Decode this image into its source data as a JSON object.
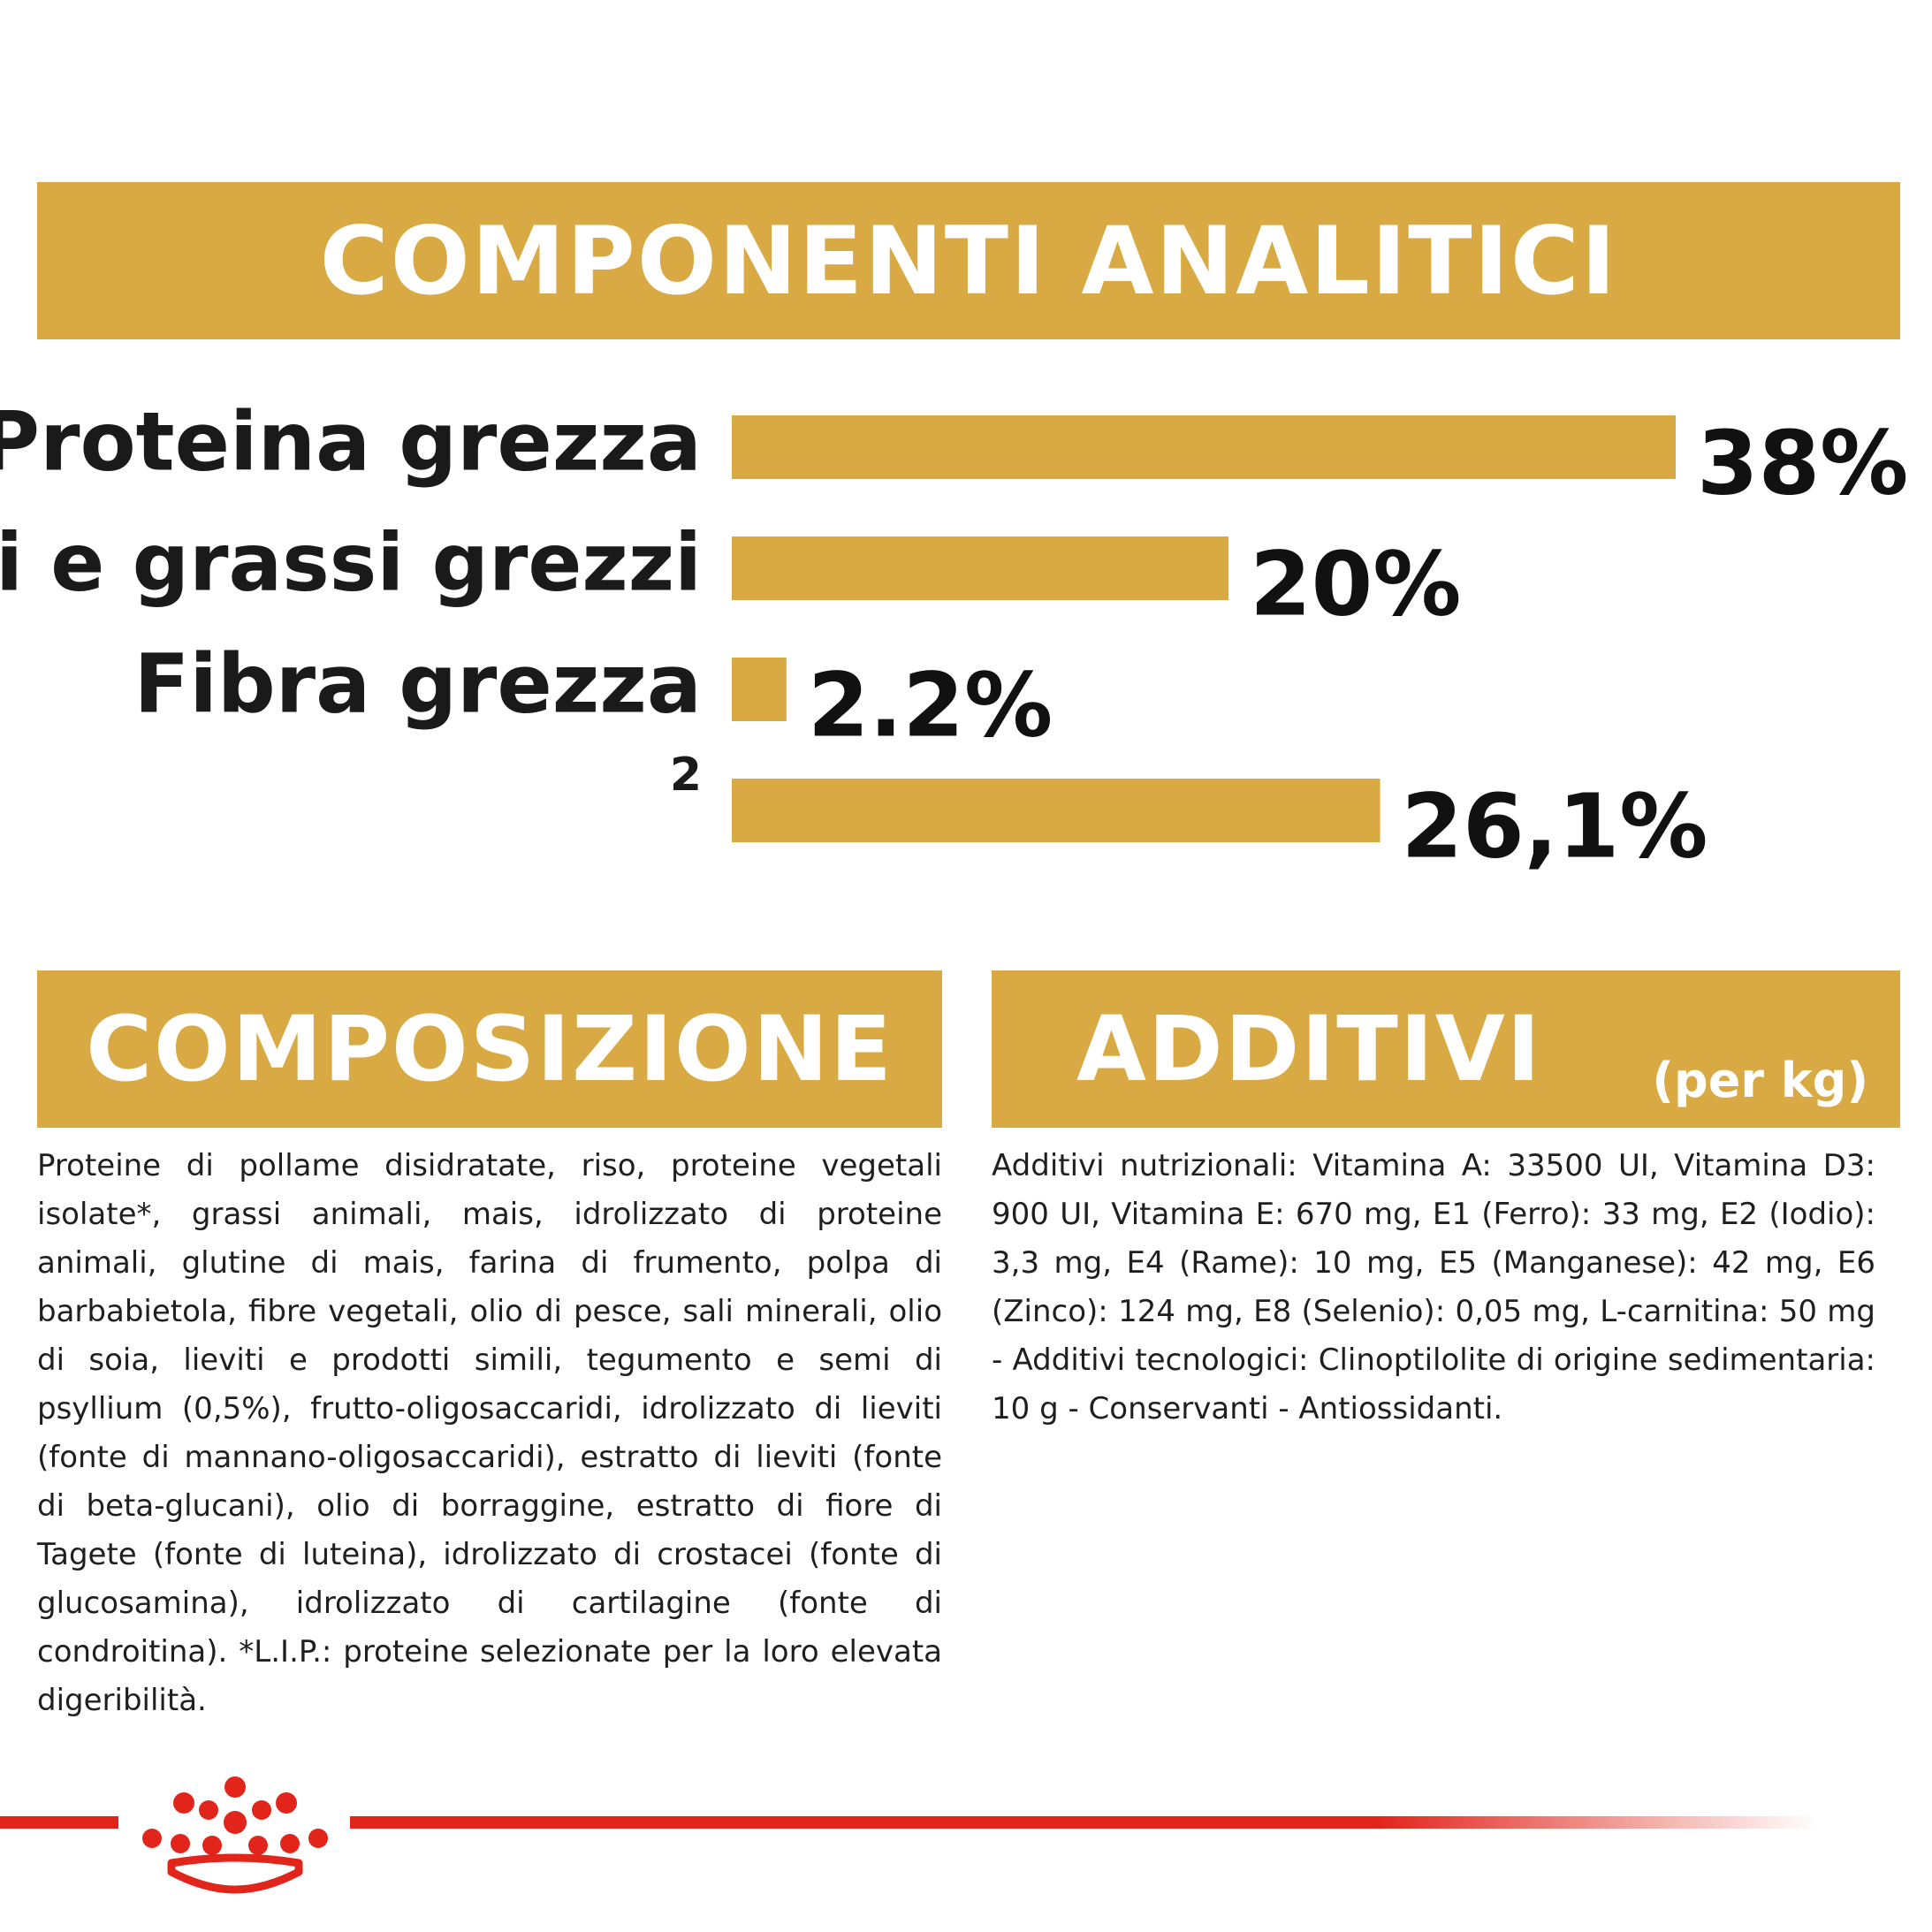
{
  "colors": {
    "accent": "#d9aa44",
    "brand_red": "#e1251b",
    "text": "#1a1a1a"
  },
  "analytic": {
    "title": "COMPONENTI ANALITICI"
  },
  "chart_data": {
    "type": "bar",
    "orientation": "horizontal",
    "title": "COMPONENTI ANALITICI",
    "categories": [
      "Proteina grezza",
      "Oli e grassi grezzi",
      "Fibra grezza",
      "2"
    ],
    "values": [
      38,
      20,
      2.2,
      26.1
    ],
    "value_labels": [
      "38%",
      "20%",
      "2.2%",
      "26,1%"
    ],
    "unit": "%",
    "xlim": [
      0,
      38
    ],
    "grid": false,
    "legend": "none"
  },
  "composition": {
    "title": "COMPOSIZIONE",
    "text": "Proteine di pollame disidratate, riso, proteine vegetali isolate*, grassi animali, mais, idrolizzato di proteine animali, glutine di mais, farina di frumento, polpa di barbabietola, fibre vegetali, olio di pesce, sali minerali, olio di soia, lieviti e prodotti simili, tegumento e semi di psyllium (0,5%), frutto-oligosaccaridi, idrolizzato di lieviti (fonte di mannano-oligosaccaridi), estratto di lieviti (fonte di beta-glucani), olio di borraggine, estratto di fiore di Tagete (fonte di luteina), idrolizzato di crostacei (fonte di glucosamina), idrolizzato di cartilagine (fonte di condroitina). *L.I.P.: proteine selezionate per la loro elevata digeribilità."
  },
  "additives": {
    "title": "ADDITIVI",
    "unit": "(per kg)",
    "text": "Additivi nutrizionali: Vitamina A: 33500 UI, Vitamina D3: 900 UI, Vitamina E: 670 mg, E1 (Ferro): 33 mg, E2 (Iodio): 3,3 mg, E4 (Rame): 10 mg, E5 (Manganese): 42 mg, E6 (Zinco): 124 mg, E8 (Selenio): 0,05 mg, L-carnitina: 50 mg - Additivi tecnologici: Clinoptilolite di origine sedimentaria: 10 g - Conservanti - Antiossidanti."
  },
  "logo": {
    "icon": "crown-icon"
  }
}
